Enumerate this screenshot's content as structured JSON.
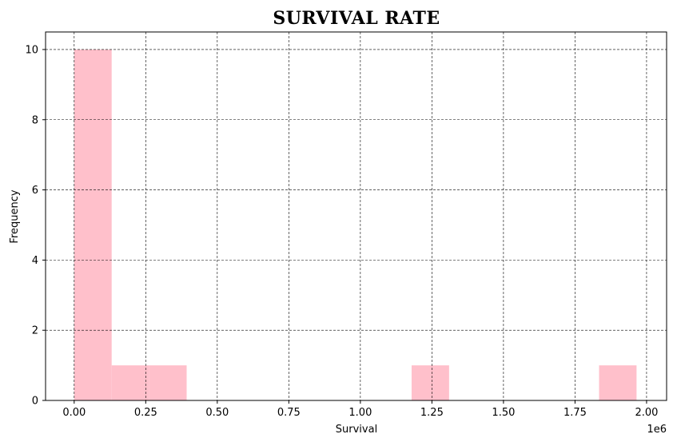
{
  "chart_data": {
    "type": "bar",
    "title": "SURVIVAL RATE",
    "xlabel": "Survival",
    "ylabel": "Frequency",
    "x_offset_label": "1e6",
    "xlim": [
      -0.1,
      2.07
    ],
    "ylim": [
      0,
      10.5
    ],
    "xticks": [
      0.0,
      0.25,
      0.5,
      0.75,
      1.0,
      1.25,
      1.5,
      1.75,
      2.0
    ],
    "xtick_labels": [
      "0.00",
      "0.25",
      "0.50",
      "0.75",
      "1.00",
      "1.25",
      "1.50",
      "1.75",
      "2.00"
    ],
    "yticks": [
      0,
      2,
      4,
      6,
      8,
      10
    ],
    "ytick_labels": [
      "0",
      "2",
      "4",
      "6",
      "8",
      "10"
    ],
    "grid": true,
    "bar_color": "#ffc0cb",
    "bins": [
      {
        "x0": 0.0,
        "x1": 0.131,
        "count": 10
      },
      {
        "x0": 0.131,
        "x1": 0.262,
        "count": 1
      },
      {
        "x0": 0.262,
        "x1": 0.393,
        "count": 1
      },
      {
        "x0": 1.179,
        "x1": 1.31,
        "count": 1
      },
      {
        "x0": 1.834,
        "x1": 1.965,
        "count": 1
      }
    ]
  }
}
